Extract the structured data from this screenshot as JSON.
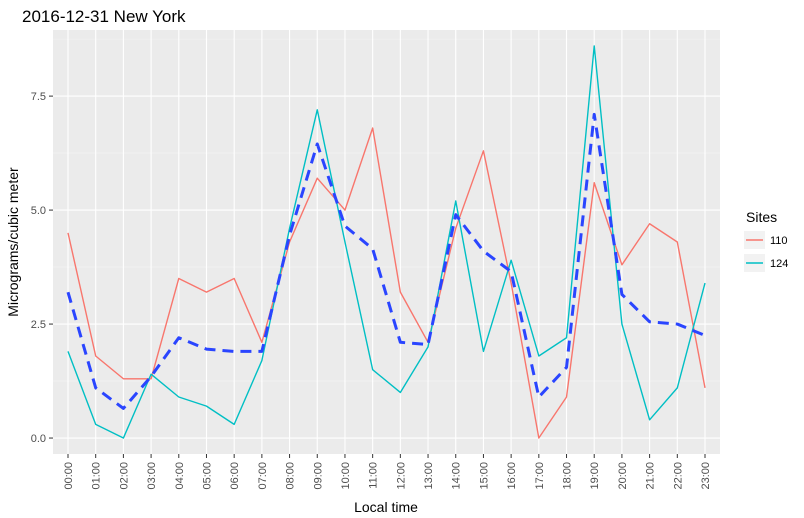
{
  "chart_data": {
    "type": "line",
    "title": "2016-12-31 New York",
    "xlabel": "Local time",
    "ylabel": "Micrograms/cubic meter",
    "categories": [
      "00:00",
      "01:00",
      "02:00",
      "03:00",
      "04:00",
      "05:00",
      "06:00",
      "07:00",
      "08:00",
      "09:00",
      "10:00",
      "11:00",
      "12:00",
      "13:00",
      "14:00",
      "15:00",
      "16:00",
      "17:00",
      "18:00",
      "19:00",
      "20:00",
      "21:00",
      "22:00",
      "23:00"
    ],
    "yticks": [
      "0.0",
      "2.5",
      "5.0",
      "7.5"
    ],
    "ylim": [
      -0.35,
      8.95
    ],
    "grid": true,
    "legend": {
      "title": "Sites",
      "position": "right"
    },
    "series": [
      {
        "name": "110",
        "color": "#F8766D",
        "dashed": false,
        "values": [
          4.5,
          1.8,
          1.3,
          1.3,
          3.5,
          3.2,
          3.5,
          2.1,
          4.3,
          5.7,
          5.0,
          6.8,
          3.2,
          2.1,
          4.6,
          6.3,
          3.4,
          0.0,
          0.9,
          5.6,
          3.8,
          4.7,
          4.3,
          1.1
        ]
      },
      {
        "name": "124",
        "color": "#00BFC4",
        "dashed": false,
        "values": [
          1.9,
          0.3,
          0.0,
          1.4,
          0.9,
          0.7,
          0.3,
          1.7,
          4.6,
          7.2,
          4.3,
          1.5,
          1.0,
          2.0,
          5.2,
          1.9,
          3.9,
          1.8,
          2.2,
          8.6,
          2.5,
          0.4,
          1.1,
          3.4
        ]
      },
      {
        "name": "",
        "color": "#2A45FF",
        "dashed": true,
        "values": [
          3.2,
          1.1,
          0.65,
          1.35,
          2.2,
          1.95,
          1.9,
          1.9,
          4.45,
          6.45,
          4.65,
          4.15,
          2.1,
          2.05,
          4.9,
          4.1,
          3.65,
          0.9,
          1.55,
          7.1,
          3.15,
          2.55,
          2.5,
          2.25
        ]
      }
    ]
  }
}
